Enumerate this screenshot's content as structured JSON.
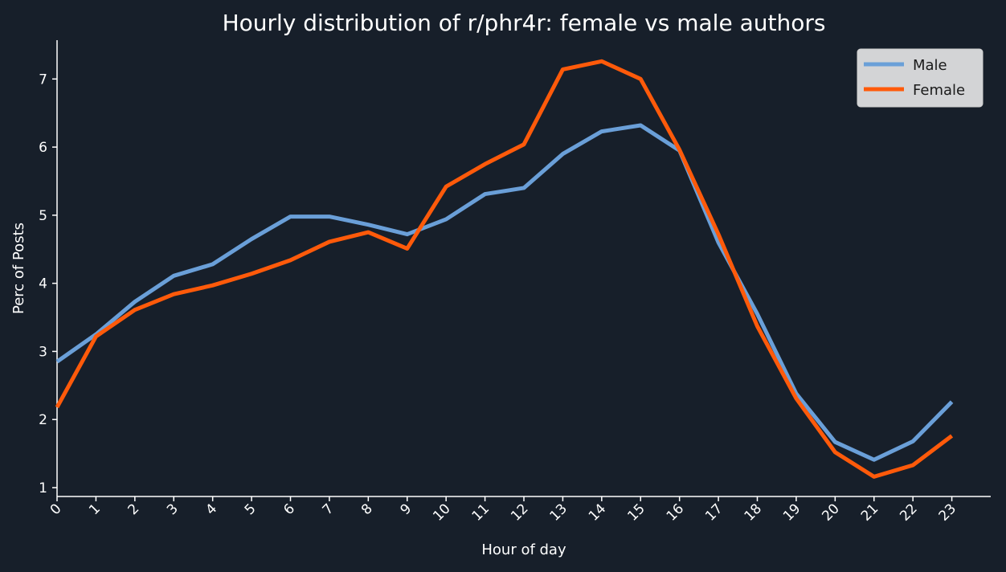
{
  "chart_data": {
    "type": "line",
    "title": "Hourly distribution of r/phr4r: female vs male authors",
    "xlabel": "Hour of day",
    "ylabel": "Perc of Posts",
    "categories": [
      "0",
      "1",
      "2",
      "3",
      "4",
      "5",
      "6",
      "7",
      "8",
      "9",
      "10",
      "11",
      "12",
      "13",
      "14",
      "15",
      "16",
      "17",
      "18",
      "19",
      "20",
      "21",
      "22",
      "23"
    ],
    "x": [
      0,
      1,
      2,
      3,
      4,
      5,
      6,
      7,
      8,
      9,
      10,
      11,
      12,
      13,
      14,
      15,
      16,
      17,
      18,
      19,
      20,
      21,
      22,
      23
    ],
    "xlim": [
      0,
      24
    ],
    "ylim": [
      0.87,
      7.57
    ],
    "yticks": [
      1,
      2,
      3,
      4,
      5,
      6,
      7
    ],
    "grid": false,
    "legend_position": "top-right",
    "series": [
      {
        "name": "Male",
        "color": "#6a9fd8",
        "values": [
          2.85,
          3.25,
          3.73,
          4.11,
          4.28,
          4.65,
          4.98,
          4.98,
          4.86,
          4.72,
          4.94,
          5.31,
          5.4,
          5.9,
          6.23,
          6.32,
          5.95,
          4.6,
          3.55,
          2.38,
          1.67,
          1.41,
          1.68,
          2.26
        ]
      },
      {
        "name": "Female",
        "color": "#ff5a0a",
        "values": [
          2.18,
          3.22,
          3.61,
          3.84,
          3.97,
          4.14,
          4.34,
          4.61,
          4.75,
          4.51,
          5.42,
          5.75,
          6.04,
          7.14,
          7.26,
          7.0,
          5.96,
          4.72,
          3.37,
          2.31,
          1.52,
          1.16,
          1.33,
          1.76
        ]
      }
    ]
  }
}
